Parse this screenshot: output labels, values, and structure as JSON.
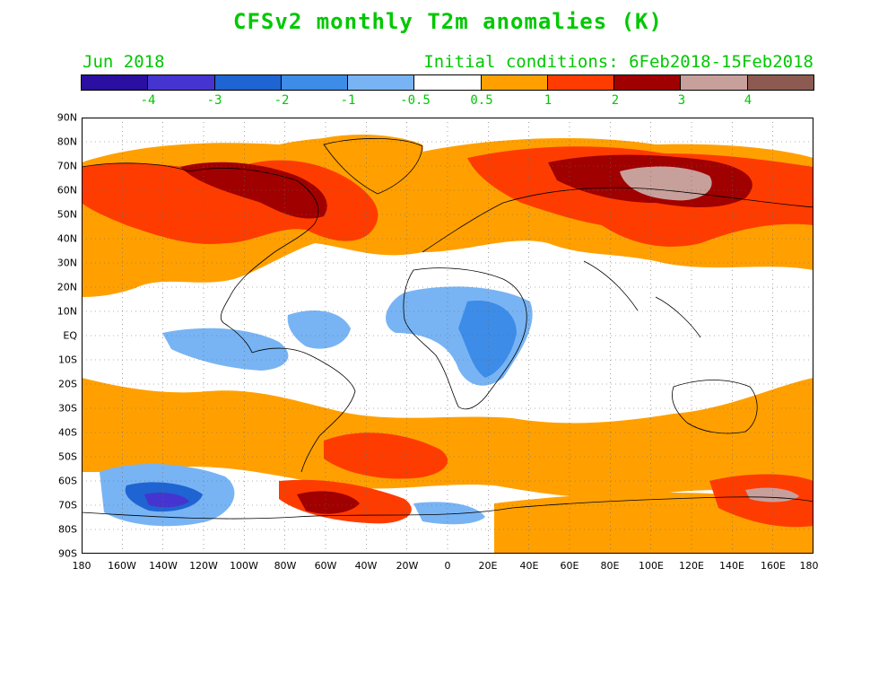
{
  "title": "CFSv2 monthly T2m anomalies (K)",
  "subtitle_left": "Jun 2018",
  "subtitle_right": "Initial conditions: 6Feb2018-15Feb2018",
  "colorbar": {
    "colors": [
      "#2a0fa0",
      "#4634d0",
      "#1e64d2",
      "#3c8ce8",
      "#78b4f4",
      "#ffffff",
      "#ffa000",
      "#ff3c00",
      "#a00000",
      "#c8a09b",
      "#8c5a50"
    ],
    "labels": [
      "-4",
      "-3",
      "-2",
      "-1",
      "-0.5",
      "0.5",
      "1",
      "2",
      "3",
      "4"
    ]
  },
  "axes": {
    "lat_labels": [
      "90N",
      "80N",
      "70N",
      "60N",
      "50N",
      "40N",
      "30N",
      "20N",
      "10N",
      "EQ",
      "10S",
      "20S",
      "30S",
      "40S",
      "50S",
      "60S",
      "70S",
      "80S",
      "90S"
    ],
    "lon_labels": [
      "180",
      "160W",
      "140W",
      "120W",
      "100W",
      "80W",
      "60W",
      "40W",
      "20W",
      "0",
      "20E",
      "40E",
      "60E",
      "80E",
      "100E",
      "120E",
      "140E",
      "160E",
      "180"
    ]
  }
}
